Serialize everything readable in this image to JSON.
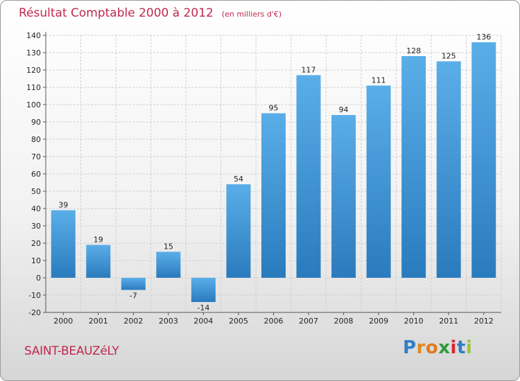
{
  "title": "Résultat Comptable 2000 à 2012",
  "unit_note": "(en milliers d'€)",
  "place_name": "SAINT-BEAUZéLY",
  "logo": {
    "text": "Proxiti",
    "letters": [
      "P",
      "r",
      "o",
      "x",
      "i",
      "t",
      "i"
    ],
    "colors": [
      "#2f7fc4",
      "#e08a1e",
      "#e07a1e",
      "#2f9a3a",
      "#d8282f",
      "#2f7fc4",
      "#9ac53a"
    ]
  },
  "colors": {
    "bar_top": "#5aaee8",
    "bar_bottom": "#2a7bbd",
    "title": "#c0284f",
    "grid": "#cfcfcf",
    "axis_text": "#222222"
  },
  "chart_data": {
    "type": "bar",
    "categories": [
      "2000",
      "2001",
      "2002",
      "2003",
      "2004",
      "2005",
      "2006",
      "2007",
      "2008",
      "2009",
      "2010",
      "2011",
      "2012"
    ],
    "values": [
      39,
      19,
      -7,
      15,
      -14,
      54,
      95,
      117,
      94,
      111,
      128,
      125,
      136
    ],
    "data_labels": [
      "39",
      "19",
      "-7",
      "15",
      "-14",
      "54",
      "95",
      "117",
      "94",
      "111",
      "128",
      "125",
      "136"
    ],
    "title": "Résultat Comptable 2000 à 2012",
    "xlabel": "",
    "ylabel": "",
    "ylim": [
      -20,
      140
    ],
    "yticks": [
      -20,
      -10,
      0,
      10,
      20,
      30,
      40,
      50,
      60,
      70,
      80,
      90,
      100,
      110,
      120,
      130,
      140
    ],
    "grid": true,
    "legend": "none"
  }
}
